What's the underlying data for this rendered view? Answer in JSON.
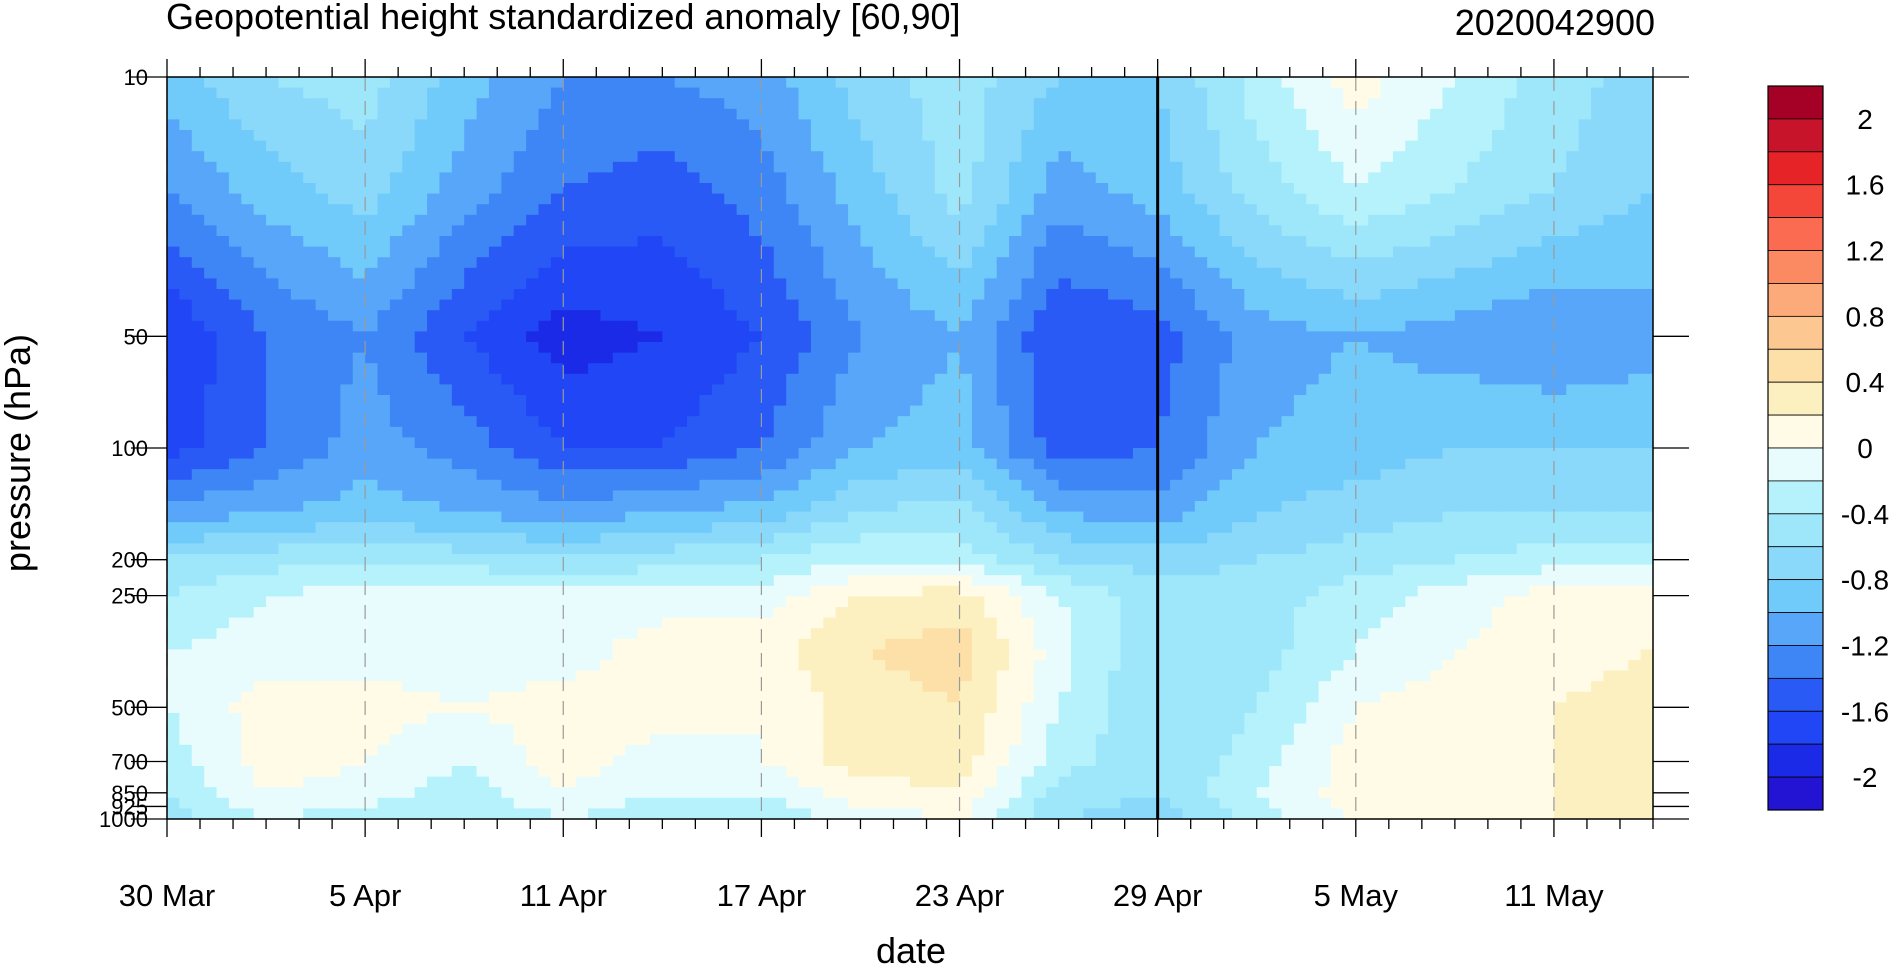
{
  "chart_data": {
    "type": "heatmap",
    "title": "Geopotential height standardized anomaly [60,90]",
    "init_label": "2020042900",
    "xlabel": "date",
    "ylabel": "pressure (hPa)",
    "x_ticks": [
      "30 Mar",
      "5 Apr",
      "11 Apr",
      "17 Apr",
      "23 Apr",
      "29 Apr",
      "5 May",
      "11 May"
    ],
    "x_range": [
      "2020-03-30",
      "2020-05-14"
    ],
    "y_ticks": [
      "10",
      "50",
      "100",
      "200",
      "250",
      "500",
      "700",
      "850",
      "925",
      "1000"
    ],
    "y_scale": "log",
    "y_range": [
      1000,
      10
    ],
    "forecast_start_marker": "29 Apr",
    "colorbar": {
      "labels": [
        "2",
        "1.6",
        "1.2",
        "0.8",
        "0.4",
        "0",
        "-0.4",
        "-0.8",
        "-1.2",
        "-1.6",
        "-2"
      ],
      "levels": [
        2.2,
        2.0,
        1.8,
        1.6,
        1.4,
        1.2,
        1.0,
        0.8,
        0.6,
        0.4,
        0.2,
        0.0,
        -0.2,
        -0.4,
        -0.6,
        -0.8,
        -1.0,
        -1.2,
        -1.4,
        -1.6,
        -1.8,
        -2.0,
        -2.2
      ],
      "colors": [
        "#a50026",
        "#c8142a",
        "#e62428",
        "#f5463a",
        "#fa6b52",
        "#fb8a63",
        "#fcaa7a",
        "#fdc791",
        "#fde0a8",
        "#fdf0c0",
        "#fffbe6",
        "#e8fcfd",
        "#b6f2fb",
        "#9ee7fb",
        "#8ad9fa",
        "#70cbfa",
        "#58a6fa",
        "#3e86f5",
        "#2a5af5",
        "#2046f5",
        "#1b2ae6",
        "#2214d2"
      ]
    },
    "grid": "vertical dashed lines at labeled dates",
    "values": {
      "note_levels_hPa": [
        10,
        20,
        50,
        100,
        150,
        200,
        250,
        350,
        500,
        700,
        850,
        1000
      ],
      "dates": [
        "30 Mar",
        "2 Apr",
        "5 Apr",
        "8 Apr",
        "11 Apr",
        "14 Apr",
        "17 Apr",
        "20 Apr",
        "23 Apr",
        "26 Apr",
        "29 Apr",
        "2 May",
        "5 May",
        "8 May",
        "11 May",
        "14 May"
      ],
      "rows": [
        [
          -0.9,
          -0.6,
          -0.5,
          -0.9,
          -1.2,
          -1.2,
          -1.1,
          -0.7,
          -0.5,
          -0.8,
          -0.8,
          -0.3,
          0.1,
          -0.2,
          -0.5,
          -0.7
        ],
        [
          -1.2,
          -0.9,
          -0.7,
          -1.1,
          -1.4,
          -1.5,
          -1.3,
          -0.9,
          -0.5,
          -1.1,
          -0.9,
          -0.5,
          -0.2,
          -0.4,
          -0.6,
          -0.8
        ],
        [
          -1.8,
          -1.4,
          -1.2,
          -1.6,
          -1.9,
          -1.8,
          -1.6,
          -1.2,
          -1.0,
          -1.6,
          -1.5,
          -1.1,
          -1.0,
          -1.1,
          -1.2,
          -1.1
        ],
        [
          -1.7,
          -1.4,
          -1.1,
          -1.3,
          -1.6,
          -1.6,
          -1.4,
          -1.0,
          -0.9,
          -1.5,
          -1.4,
          -1.0,
          -0.9,
          -0.8,
          -0.8,
          -0.8
        ],
        [
          -1.1,
          -1.0,
          -0.9,
          -1.0,
          -1.1,
          -1.0,
          -0.9,
          -0.6,
          -0.5,
          -1.0,
          -1.1,
          -0.8,
          -0.7,
          -0.6,
          -0.6,
          -0.6
        ],
        [
          -0.6,
          -0.5,
          -0.4,
          -0.5,
          -0.6,
          -0.5,
          -0.4,
          -0.2,
          -0.3,
          -0.6,
          -0.7,
          -0.6,
          -0.5,
          -0.4,
          -0.3,
          -0.3
        ],
        [
          -0.4,
          -0.2,
          -0.1,
          -0.1,
          -0.1,
          -0.1,
          -0.1,
          0.2,
          0.3,
          -0.2,
          -0.5,
          -0.5,
          -0.3,
          -0.1,
          0.1,
          0.1
        ],
        [
          -0.2,
          -0.1,
          -0.1,
          -0.1,
          -0.1,
          0.1,
          0.1,
          0.4,
          0.5,
          -0.1,
          -0.6,
          -0.5,
          -0.2,
          0.0,
          0.1,
          0.2
        ],
        [
          -0.2,
          0.1,
          0.1,
          0.0,
          0.1,
          0.1,
          0.0,
          0.3,
          0.4,
          -0.2,
          -0.6,
          -0.4,
          0.0,
          0.1,
          0.2,
          0.3
        ],
        [
          -0.3,
          0.1,
          0.0,
          -0.2,
          0.1,
          -0.1,
          0.0,
          0.3,
          0.3,
          -0.3,
          -0.6,
          -0.3,
          0.1,
          0.1,
          0.2,
          0.4
        ],
        [
          -0.4,
          0.0,
          -0.1,
          -0.3,
          0.0,
          -0.2,
          -0.2,
          0.1,
          0.2,
          -0.5,
          -0.6,
          -0.2,
          0.1,
          0.1,
          0.2,
          0.3
        ],
        [
          -0.5,
          -0.2,
          -0.3,
          -0.4,
          -0.2,
          -0.4,
          -0.4,
          -0.1,
          0.0,
          -0.6,
          -0.7,
          -0.3,
          0.0,
          0.1,
          0.2,
          0.2
        ]
      ]
    }
  }
}
